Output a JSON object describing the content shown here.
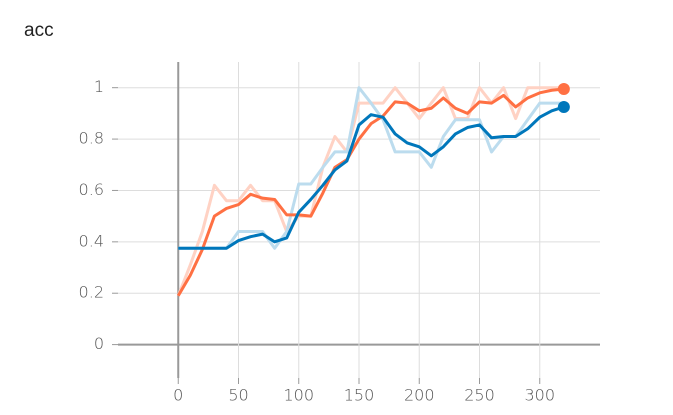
{
  "chart_data": {
    "type": "line",
    "title": "acc",
    "x": [
      0,
      10,
      20,
      30,
      40,
      50,
      60,
      70,
      80,
      90,
      100,
      110,
      120,
      130,
      140,
      150,
      160,
      170,
      180,
      190,
      200,
      210,
      220,
      230,
      240,
      250,
      260,
      270,
      280,
      290,
      300,
      310,
      320
    ],
    "series": [
      {
        "color": "#ffd2c4",
        "values": [
          0.19,
          0.31,
          0.44,
          0.62,
          0.56,
          0.56,
          0.62,
          0.56,
          0.56,
          0.44,
          0.5,
          0.5,
          0.69,
          0.81,
          0.75,
          0.94,
          0.94,
          0.94,
          1.0,
          0.94,
          0.88,
          0.94,
          1.0,
          0.88,
          0.88,
          1.0,
          0.94,
          1.0,
          0.88,
          1.0,
          1.0,
          1.0,
          1.0
        ]
      },
      {
        "color": "#bcdcee",
        "values": [
          0.375,
          0.375,
          0.375,
          0.375,
          0.375,
          0.44,
          0.44,
          0.44,
          0.375,
          0.44,
          0.625,
          0.625,
          0.69,
          0.75,
          0.75,
          1.0,
          0.94,
          0.875,
          0.75,
          0.75,
          0.75,
          0.69,
          0.81,
          0.875,
          0.875,
          0.875,
          0.75,
          0.81,
          0.81,
          0.875,
          0.94,
          0.94,
          0.94
        ]
      },
      {
        "color": "#ff7043",
        "end_marker": true,
        "values": [
          0.19,
          0.27,
          0.37,
          0.5,
          0.53,
          0.545,
          0.585,
          0.57,
          0.565,
          0.505,
          0.505,
          0.5,
          0.59,
          0.69,
          0.72,
          0.8,
          0.86,
          0.89,
          0.945,
          0.94,
          0.91,
          0.92,
          0.96,
          0.92,
          0.9,
          0.945,
          0.94,
          0.97,
          0.925,
          0.96,
          0.98,
          0.99,
          0.995
        ]
      },
      {
        "color": "#0077bb",
        "end_marker": true,
        "values": [
          0.375,
          0.375,
          0.375,
          0.375,
          0.375,
          0.405,
          0.42,
          0.43,
          0.4,
          0.415,
          0.515,
          0.565,
          0.62,
          0.68,
          0.715,
          0.855,
          0.895,
          0.885,
          0.82,
          0.785,
          0.77,
          0.735,
          0.77,
          0.82,
          0.845,
          0.855,
          0.805,
          0.81,
          0.81,
          0.84,
          0.885,
          0.91,
          0.925
        ]
      }
    ],
    "xlim": [
      -50,
      350
    ],
    "xticks": [
      0,
      50,
      100,
      150,
      200,
      250,
      300
    ],
    "ylim": [
      -0.13,
      1.1
    ],
    "yticks": [
      0,
      0.2,
      0.4,
      0.6,
      0.8,
      1
    ],
    "grid": true
  }
}
